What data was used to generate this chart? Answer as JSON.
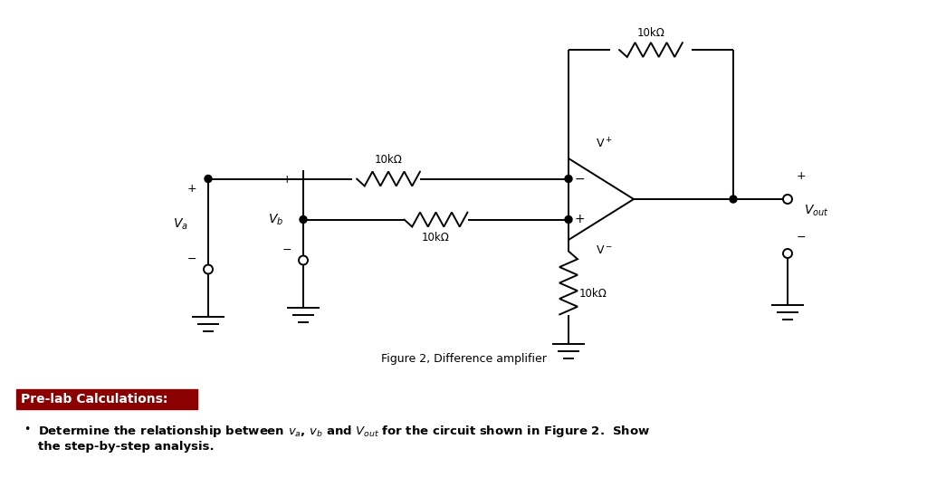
{
  "bg_color": "#ffffff",
  "fig_width": 10.24,
  "fig_height": 5.38,
  "dpi": 100,
  "figure_caption": "Figure 2, Difference amplifier",
  "prelab_text": "Pre-lab Calculations:",
  "prelab_fontsize": 10,
  "prelab_bg": "#8B0000",
  "prelab_fg": "#ffffff",
  "line_color": "#000000",
  "lw": 1.4,
  "res_label": "10kΩ",
  "res_label_fontsize": 8.5,
  "caption_fontsize": 9,
  "bullet_fontsize": 9.5
}
